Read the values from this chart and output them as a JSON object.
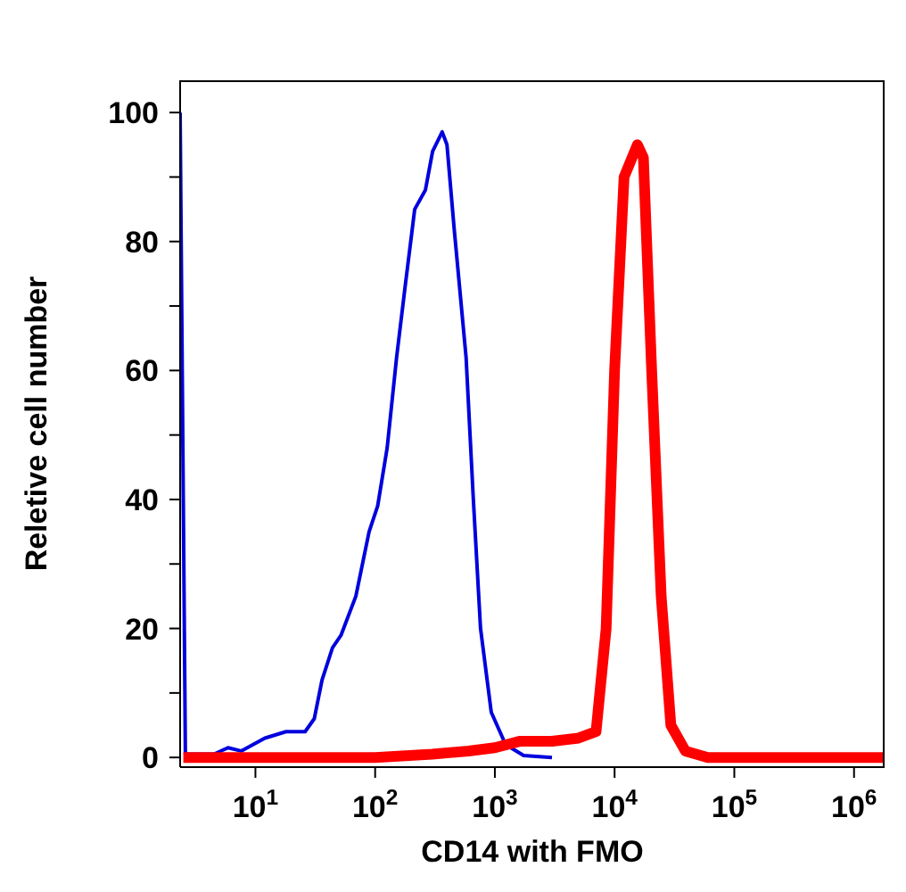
{
  "chart_data": {
    "type": "line",
    "xlabel": "CD14 with FMO",
    "ylabel": "Reletive cell number",
    "log": "x",
    "xlim": [
      2.35,
      1800000
    ],
    "ylim": [
      -1.5,
      105
    ],
    "xticks": [
      {
        "value": 10,
        "label": "10$^{1}$"
      },
      {
        "value": 100,
        "label": "10$^{2}$"
      },
      {
        "value": 1000,
        "label": "10$^{3}$"
      },
      {
        "value": 10000,
        "label": "10$^{4}$"
      },
      {
        "value": 100000,
        "label": "10$^{5}$"
      },
      {
        "value": 1000000,
        "label": "10$^{6}$"
      }
    ],
    "yticks": [
      0,
      {
        "value": 10,
        "label": null
      },
      20,
      {
        "value": 30,
        "label": null
      },
      40,
      {
        "value": 50,
        "label": null
      },
      60,
      {
        "value": 70,
        "label": null
      },
      80,
      {
        "value": 90,
        "label": null
      },
      100
    ],
    "series": [
      {
        "color": "#0000dd",
        "x": [
          2.35,
          2.6,
          4.5,
          5.9,
          7.6,
          12,
          18,
          26,
          31,
          36,
          44,
          52,
          69,
          89,
          105,
          126,
          151,
          178,
          214,
          263,
          302,
          363,
          398,
          457,
          575,
          661,
          759,
          933,
          1230,
          1740,
          3000
        ],
        "values": [
          100,
          0.5,
          0.5,
          1.5,
          1,
          3,
          4,
          4,
          6,
          12,
          17,
          19,
          25,
          35,
          39,
          48,
          62,
          73,
          85,
          88,
          94,
          97,
          95,
          82,
          62,
          40,
          20,
          7,
          2,
          0.3,
          0
        ]
      },
      {
        "color": "#ff0000",
        "x": [
          2.5,
          100,
          300,
          600,
          1000,
          1600,
          3000,
          5000,
          7000,
          8500,
          10000,
          12000,
          15500,
          17400,
          20400,
          24500,
          29500,
          39000,
          60000,
          1800000
        ],
        "values": [
          0,
          0,
          0.5,
          1,
          1.5,
          2.5,
          2.5,
          3,
          4,
          20,
          60,
          90,
          95,
          93,
          60,
          25,
          5,
          1,
          0,
          0
        ]
      }
    ]
  }
}
